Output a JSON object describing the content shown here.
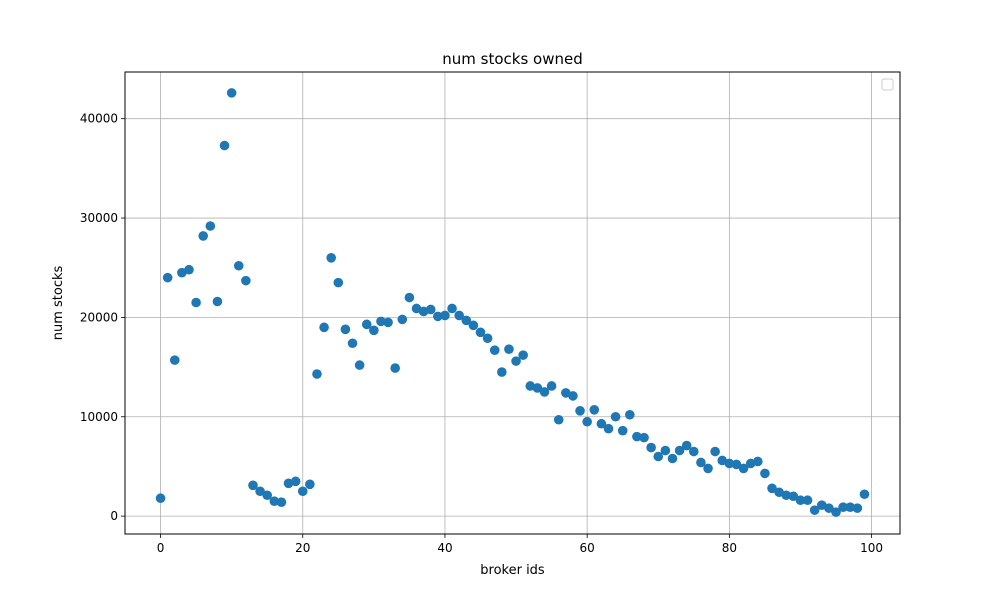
{
  "chart_data": {
    "type": "scatter",
    "title": "num stocks owned",
    "xlabel": "broker ids",
    "ylabel": "num stocks",
    "xlim": [
      -5,
      104
    ],
    "ylim": [
      -1800,
      44700
    ],
    "xticks": [
      0,
      20,
      40,
      60,
      80,
      100
    ],
    "xtick_labels": [
      "0",
      "20",
      "40",
      "60",
      "80",
      "100"
    ],
    "yticks": [
      0,
      10000,
      20000,
      30000,
      40000
    ],
    "ytick_labels": [
      "0",
      "10000",
      "20000",
      "30000",
      "40000"
    ],
    "grid": true,
    "legend": {
      "location": "top-right",
      "entries": []
    },
    "marker_color": "#1f77b4",
    "series": [
      {
        "x": [
          0,
          1,
          2,
          3,
          4,
          5,
          6,
          7,
          8,
          9,
          10,
          11,
          12,
          13,
          14,
          15,
          16,
          17,
          18,
          19,
          20,
          21,
          22,
          23,
          24,
          25,
          26,
          27,
          28,
          29,
          30,
          31,
          32,
          33,
          34,
          35,
          36,
          37,
          38,
          39,
          40,
          41,
          42,
          43,
          44,
          45,
          46,
          47,
          48,
          49,
          50,
          51,
          52,
          53,
          54,
          55,
          56,
          57,
          58,
          59,
          60,
          61,
          62,
          63,
          64,
          65,
          66,
          67,
          68,
          69,
          70,
          71,
          72,
          73,
          74,
          75,
          76,
          77,
          78,
          79,
          80,
          81,
          82,
          83,
          84,
          85,
          86,
          87,
          88,
          89,
          90,
          91,
          92,
          93,
          94,
          95,
          96,
          97,
          98,
          99
        ],
        "y": [
          1800,
          24000,
          15700,
          24500,
          24800,
          21500,
          28200,
          29200,
          21600,
          37300,
          42600,
          25200,
          23700,
          3100,
          2500,
          2100,
          1500,
          1400,
          3300,
          3500,
          2500,
          3200,
          14300,
          19000,
          26000,
          23500,
          18800,
          17400,
          15200,
          19300,
          18700,
          19600,
          19500,
          14900,
          19800,
          22000,
          20900,
          20600,
          20800,
          20100,
          20200,
          20900,
          20200,
          19700,
          19200,
          18500,
          17900,
          16700,
          14500,
          16800,
          15600,
          16200,
          13100,
          12900,
          12500,
          13100,
          9700,
          12400,
          12100,
          10600,
          9500,
          10700,
          9300,
          8800,
          10000,
          8600,
          10200,
          8000,
          7900,
          6900,
          6000,
          6600,
          5800,
          6600,
          7100,
          6500,
          5400,
          4800,
          6500,
          5600,
          5300,
          5200,
          4800,
          5300,
          5500,
          4300,
          2800,
          2400,
          2100,
          2000,
          1600,
          1600,
          600,
          1100,
          800,
          400,
          900,
          900,
          800,
          2200
        ]
      }
    ]
  }
}
